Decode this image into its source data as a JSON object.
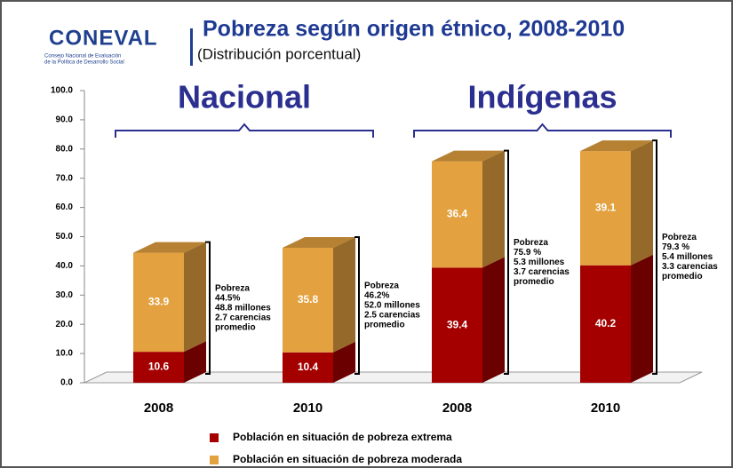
{
  "header": {
    "logo": "CONEVAL",
    "logo_caption": [
      "Consejo Nacional de Evaluación",
      "de la Política de Desarrollo Social"
    ]
  },
  "chart_data": {
    "type": "bar3d_stacked",
    "title": "Pobreza según origen étnico, 2008-2010",
    "subtitle": "(Distribución porcentual)",
    "groups": [
      {
        "label": "Nacional",
        "categories": [
          0,
          1
        ]
      },
      {
        "label": "Indígenas",
        "categories": [
          2,
          3
        ]
      }
    ],
    "categories": [
      "2008",
      "2010",
      "2008",
      "2010"
    ],
    "series": [
      {
        "name": "Población en situación de pobreza extrema",
        "color": "#a50000",
        "values": [
          10.6,
          10.4,
          39.4,
          40.2
        ]
      },
      {
        "name": "Población en situación de pobreza  moderada",
        "color": "#e3a13f",
        "values": [
          33.9,
          35.8,
          36.4,
          39.1
        ]
      }
    ],
    "annotations": [
      [
        "Pobreza",
        "44.5%",
        "48.8 millones",
        "2.7 carencias",
        "promedio"
      ],
      [
        "Pobreza",
        "46.2%",
        "52.0 millones",
        "2.5 carencias",
        "promedio"
      ],
      [
        "Pobreza",
        "75.9 %",
        "5.3 millones",
        "3.7 carencias",
        "promedio"
      ],
      [
        "Pobreza",
        "79.3 %",
        "5.4 millones",
        "3.3 carencias",
        "promedio"
      ]
    ],
    "ylim": [
      0,
      100
    ],
    "yticks": [
      {
        "value": 0,
        "label": "0.0"
      },
      {
        "value": 10,
        "label": "10.0"
      },
      {
        "value": 20,
        "label": "20.0"
      },
      {
        "value": 30,
        "label": "30.0"
      },
      {
        "value": 40,
        "label": "40.0"
      },
      {
        "value": 50,
        "label": "50.0"
      },
      {
        "value": 60,
        "label": "60.0"
      },
      {
        "value": 70,
        "label": "70.0"
      },
      {
        "value": 80,
        "label": "80.0"
      },
      {
        "value": 90,
        "label": "90.0"
      },
      {
        "value": 100,
        "label": "100.0"
      }
    ],
    "legend": "bottom"
  }
}
